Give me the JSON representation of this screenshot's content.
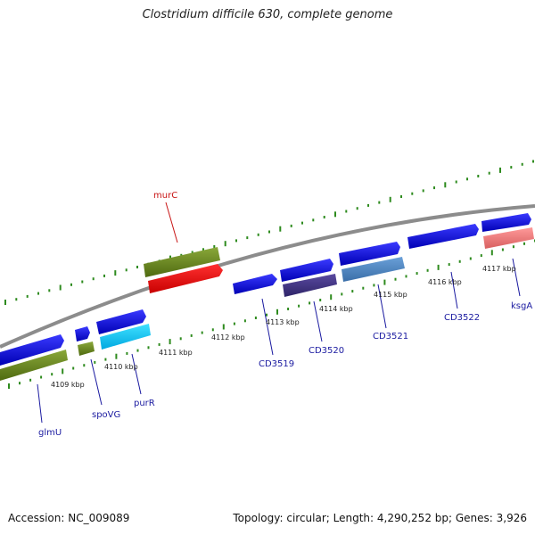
{
  "title": "Clostridium difficile 630, complete genome",
  "footer": {
    "accession": "Accession: NC_009089",
    "summary": "Topology: circular; Length: 4,290,252 bp; Genes: 3,926"
  },
  "colors": {
    "backbone": "#8c8c8c",
    "ticks": "#2e8b1e",
    "label_blue": "#1a1aa0",
    "label_red": "#c81414"
  },
  "scale_labels": [
    "4109 kbp",
    "4110 kbp",
    "4111 kbp",
    "4112 kbp",
    "4113 kbp",
    "4114 kbp",
    "4115 kbp",
    "4116 kbp",
    "4117 kbp"
  ],
  "gene_labels": [
    {
      "text": "glmU",
      "color": "#1a1aa0"
    },
    {
      "text": "spoVG",
      "color": "#1a1aa0"
    },
    {
      "text": "purR",
      "color": "#1a1aa0"
    },
    {
      "text": "murC",
      "color": "#c81414"
    },
    {
      "text": "CD3519",
      "color": "#1a1aa0"
    },
    {
      "text": "CD3520",
      "color": "#1a1aa0"
    },
    {
      "text": "CD3521",
      "color": "#1a1aa0"
    },
    {
      "text": "CD3522",
      "color": "#1a1aa0"
    },
    {
      "text": "ksgA",
      "color": "#1a1aa0"
    }
  ]
}
